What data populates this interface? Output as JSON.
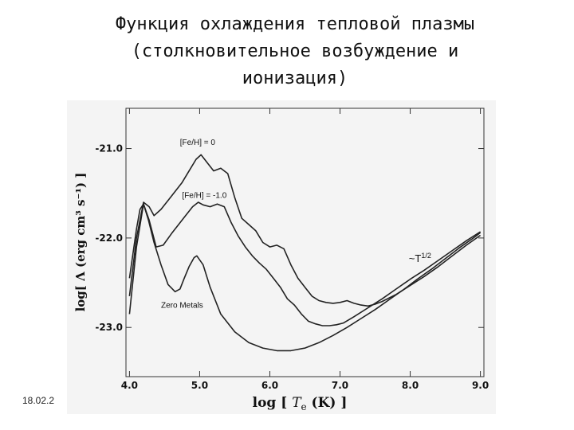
{
  "slide": {
    "title_lines": [
      "Функция охлаждения тепловой плазмы",
      "(столкновительное возбуждение и",
      "ионизация)"
    ],
    "footer_date": "18.02.2"
  },
  "chart_data": {
    "type": "line",
    "xlabel_prefix": "log [ ",
    "xlabel_var": "T",
    "xlabel_sub": "e",
    "xlabel_suffix": " (K) ]",
    "ylabel": "log[ Λ (erg cm³ s⁻¹) ]",
    "xlim": [
      3.95,
      9.05
    ],
    "ylim": [
      -23.55,
      -20.55
    ],
    "x_ticks": [
      4.0,
      5.0,
      6.0,
      7.0,
      8.0,
      9.0
    ],
    "x_tick_labels": [
      "4.0",
      "5.0",
      "6.0",
      "7.0",
      "8.0",
      "9.0"
    ],
    "y_ticks": [
      -21.0,
      -22.0,
      -23.0
    ],
    "y_tick_labels": [
      "-21.0",
      "-22.0",
      "-23.0"
    ],
    "grid": false,
    "background": "#f4f4f4",
    "line_color": "#222222",
    "annotation": {
      "text": "~T",
      "sup": "1/2",
      "x": 7.98,
      "y": -22.27
    },
    "series": [
      {
        "name": "[Fe/H] = 0",
        "label_pos": [
          4.72,
          -20.96
        ],
        "x": [
          4.0,
          4.1,
          4.2,
          4.28,
          4.35,
          4.45,
          4.55,
          4.65,
          4.75,
          4.85,
          4.95,
          5.02,
          5.1,
          5.2,
          5.3,
          5.4,
          5.5,
          5.6,
          5.7,
          5.8,
          5.9,
          6.0,
          6.1,
          6.2,
          6.3,
          6.4,
          6.5,
          6.6,
          6.7,
          6.8,
          6.9,
          7.0,
          7.1,
          7.2,
          7.3,
          7.4,
          7.5,
          7.6,
          7.8,
          8.0,
          8.2,
          8.4,
          8.6,
          8.8,
          9.0
        ],
        "y": [
          -22.65,
          -22.0,
          -21.6,
          -21.65,
          -21.75,
          -21.68,
          -21.58,
          -21.48,
          -21.38,
          -21.25,
          -21.12,
          -21.07,
          -21.15,
          -21.25,
          -21.22,
          -21.28,
          -21.55,
          -21.78,
          -21.85,
          -21.92,
          -22.05,
          -22.1,
          -22.08,
          -22.12,
          -22.3,
          -22.45,
          -22.55,
          -22.65,
          -22.7,
          -22.72,
          -22.73,
          -22.72,
          -22.7,
          -22.73,
          -22.75,
          -22.76,
          -22.74,
          -22.71,
          -22.63,
          -22.53,
          -22.43,
          -22.32,
          -22.2,
          -22.08,
          -21.97
        ]
      },
      {
        "name": "[Fe/H] = -1.0",
        "label_pos": [
          4.75,
          -21.55
        ],
        "x": [
          4.0,
          4.1,
          4.2,
          4.28,
          4.38,
          4.48,
          4.6,
          4.7,
          4.8,
          4.9,
          4.98,
          5.05,
          5.15,
          5.25,
          5.35,
          5.45,
          5.55,
          5.65,
          5.75,
          5.85,
          5.95,
          6.05,
          6.15,
          6.25,
          6.35,
          6.45,
          6.55,
          6.65,
          6.75,
          6.85,
          6.95,
          7.05,
          7.2,
          7.4,
          7.6,
          7.8,
          8.0,
          8.2,
          8.4,
          8.6,
          8.8,
          9.0
        ],
        "y": [
          -22.85,
          -22.1,
          -21.62,
          -21.8,
          -22.1,
          -22.08,
          -21.95,
          -21.85,
          -21.75,
          -21.65,
          -21.6,
          -21.63,
          -21.65,
          -21.62,
          -21.65,
          -21.83,
          -21.98,
          -22.1,
          -22.2,
          -22.28,
          -22.35,
          -22.45,
          -22.55,
          -22.68,
          -22.75,
          -22.85,
          -22.93,
          -22.96,
          -22.98,
          -22.98,
          -22.97,
          -22.95,
          -22.88,
          -22.78,
          -22.68,
          -22.57,
          -22.46,
          -22.36,
          -22.25,
          -22.14,
          -22.03,
          -21.93
        ]
      },
      {
        "name": "Zero Metals",
        "label_pos": [
          4.45,
          -22.78
        ],
        "x": [
          4.0,
          4.1,
          4.15,
          4.2,
          4.27,
          4.35,
          4.45,
          4.55,
          4.65,
          4.72,
          4.78,
          4.85,
          4.92,
          4.96,
          5.05,
          5.15,
          5.3,
          5.5,
          5.7,
          5.9,
          6.1,
          6.3,
          6.5,
          6.7,
          6.9,
          7.1,
          7.3,
          7.5,
          7.7,
          7.9,
          8.1,
          8.3,
          8.5,
          8.7,
          8.9,
          9.0
        ],
        "y": [
          -22.45,
          -21.9,
          -21.68,
          -21.62,
          -21.8,
          -22.05,
          -22.3,
          -22.52,
          -22.6,
          -22.57,
          -22.45,
          -22.32,
          -22.22,
          -22.2,
          -22.3,
          -22.55,
          -22.85,
          -23.05,
          -23.17,
          -23.23,
          -23.26,
          -23.26,
          -23.23,
          -23.17,
          -23.09,
          -23.0,
          -22.9,
          -22.8,
          -22.69,
          -22.58,
          -22.46,
          -22.35,
          -22.23,
          -22.11,
          -22.0,
          -21.94
        ]
      }
    ]
  }
}
